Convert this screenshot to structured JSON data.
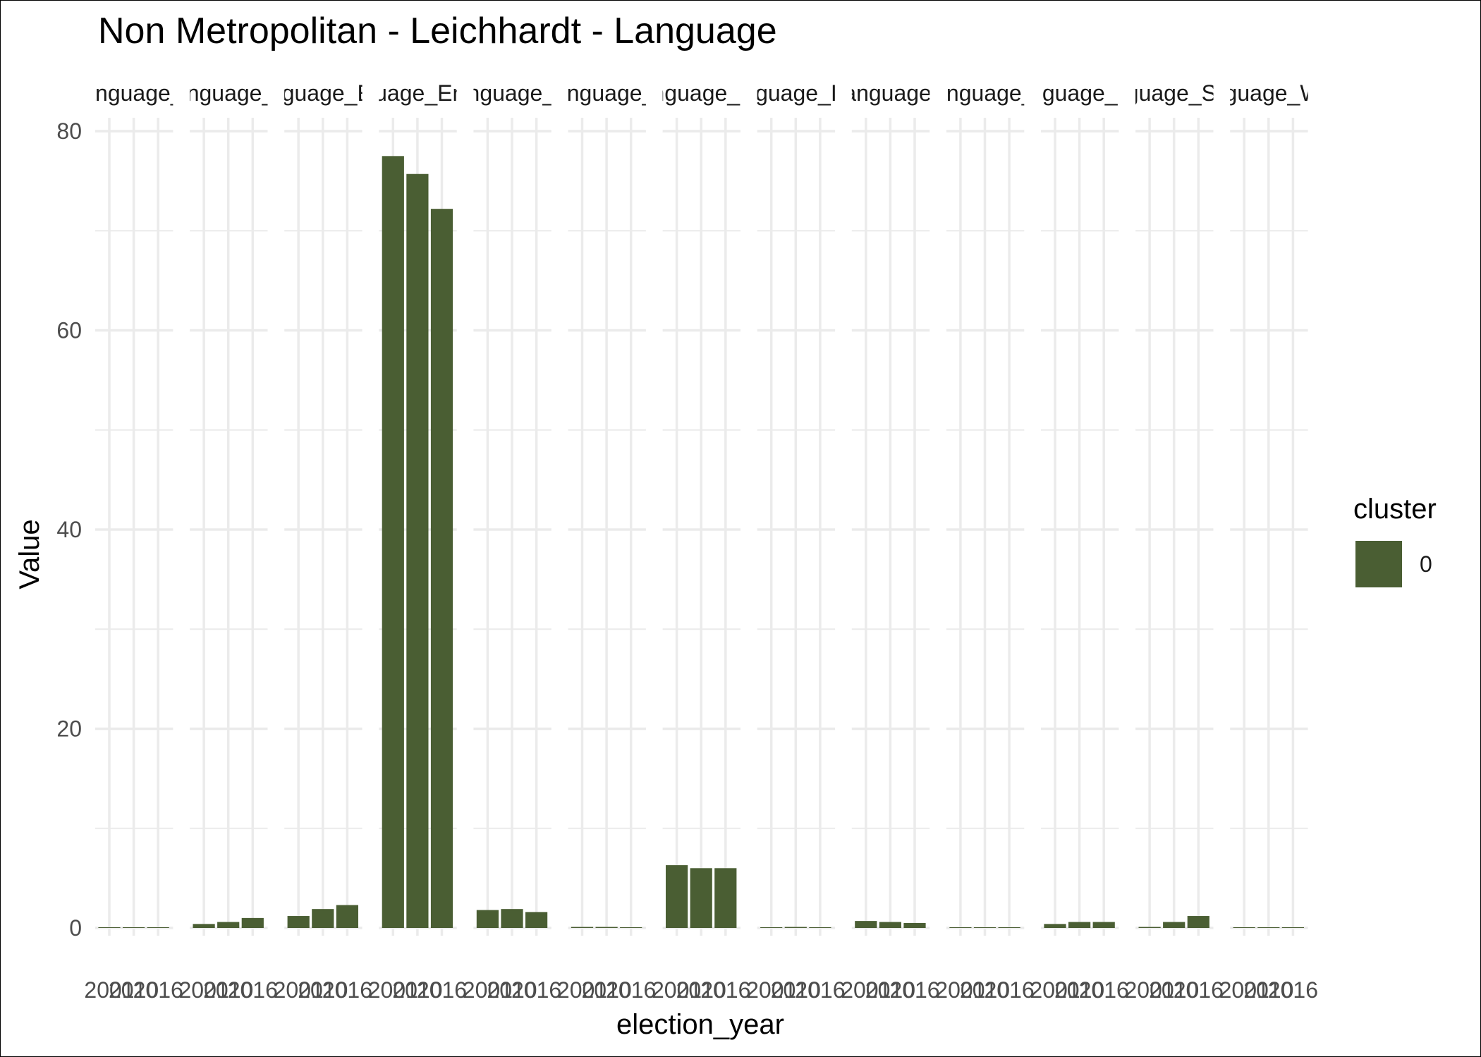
{
  "chart_data": {
    "type": "bar",
    "title": "Non Metropolitan - Leichhardt - Language",
    "xlabel": "election_year",
    "ylabel": "Value",
    "ylim": [
      0,
      80
    ],
    "yticks": [
      0,
      20,
      40,
      60,
      80
    ],
    "grid": true,
    "categories": [
      "2001",
      "2010",
      "2016"
    ],
    "facets": [
      {
        "label": "Language_A",
        "values": [
          0.05,
          0.05,
          0.05
        ]
      },
      {
        "label": "Language_Cl",
        "values": [
          0.4,
          0.6,
          1.0
        ]
      },
      {
        "label": "Language_East",
        "values": [
          1.2,
          1.9,
          2.3
        ]
      },
      {
        "label": "Language_English",
        "values": [
          77.5,
          75.7,
          72.2
        ]
      },
      {
        "label": "Language_Eu",
        "values": [
          1.8,
          1.9,
          1.6
        ]
      },
      {
        "label": "Language_O",
        "values": [
          0.1,
          0.1,
          0.05
        ]
      },
      {
        "label": "Language_Indi",
        "values": [
          6.3,
          6.0,
          6.0
        ]
      },
      {
        "label": "Language_Indo",
        "values": [
          0.05,
          0.1,
          0.05
        ]
      },
      {
        "label": "Language_I",
        "values": [
          0.7,
          0.6,
          0.5
        ]
      },
      {
        "label": "Language_P",
        "values": [
          0.05,
          0.05,
          0.05
        ]
      },
      {
        "label": "Language_Phil",
        "values": [
          0.4,
          0.6,
          0.6
        ]
      },
      {
        "label": "Language_South",
        "values": [
          0.1,
          0.6,
          1.2
        ]
      },
      {
        "label": "Language_West",
        "values": [
          0.05,
          0.05,
          0.05
        ]
      }
    ],
    "series": [
      {
        "name": "0",
        "color": "#4a5e33"
      }
    ],
    "legend": {
      "title": "cluster",
      "position": "right",
      "entries": [
        "0"
      ]
    }
  }
}
